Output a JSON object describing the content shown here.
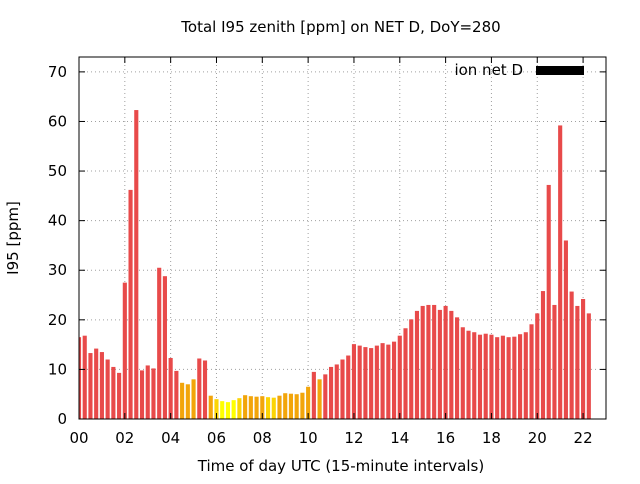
{
  "chart_data": {
    "type": "bar",
    "title": "Total I95 zenith [ppm] on NET D, DoY=280",
    "xlabel": "Time of day UTC (15-minute intervals)",
    "ylabel": "I95 [ppm]",
    "xlim": [
      0,
      23
    ],
    "ylim": [
      0,
      73
    ],
    "interval_hours": 0.25,
    "x_ticks": [
      0,
      2,
      4,
      6,
      8,
      10,
      12,
      14,
      16,
      18,
      20,
      22
    ],
    "x_tick_labels": [
      "00",
      "02",
      "04",
      "06",
      "08",
      "10",
      "12",
      "14",
      "16",
      "18",
      "20",
      "22"
    ],
    "y_ticks": [
      0,
      10,
      20,
      30,
      40,
      50,
      60,
      70
    ],
    "y_tick_labels": [
      "0",
      "10",
      "20",
      "30",
      "40",
      "50",
      "60",
      "70"
    ],
    "grid": true,
    "legend_position": "top-right",
    "series": [
      {
        "name": "ion net D",
        "legend_color": "#000000",
        "values": [
          16.5,
          16.8,
          13.3,
          14.2,
          13.5,
          12.0,
          10.5,
          9.3,
          27.5,
          46.2,
          62.3,
          9.8,
          10.8,
          10.2,
          30.5,
          28.8,
          12.3,
          9.7,
          7.3,
          7.0,
          8.0,
          12.2,
          11.8,
          4.7,
          4.0,
          3.6,
          3.4,
          3.8,
          4.2,
          4.8,
          4.6,
          4.5,
          4.6,
          4.4,
          4.3,
          4.7,
          5.2,
          5.1,
          5.0,
          5.3,
          6.5,
          9.5,
          8.0,
          9.0,
          10.5,
          11.0,
          12.0,
          12.8,
          15.1,
          14.8,
          14.5,
          14.3,
          14.8,
          15.3,
          15.0,
          15.6,
          16.8,
          18.3,
          20.1,
          21.8,
          22.8,
          23.0,
          23.0,
          22.0,
          22.8,
          21.8,
          20.5,
          18.5,
          17.8,
          17.5,
          17.0,
          17.2,
          17.0,
          16.5,
          16.8,
          16.5,
          16.6,
          17.1,
          17.5,
          19.1,
          21.3,
          25.8,
          47.2,
          23.0,
          59.2,
          36.0,
          25.7,
          22.8,
          24.2,
          21.3
        ]
      }
    ],
    "color_scale": {
      "high": "#e84a4a",
      "mid": "#f2a50a",
      "low": "#ffff00"
    }
  }
}
